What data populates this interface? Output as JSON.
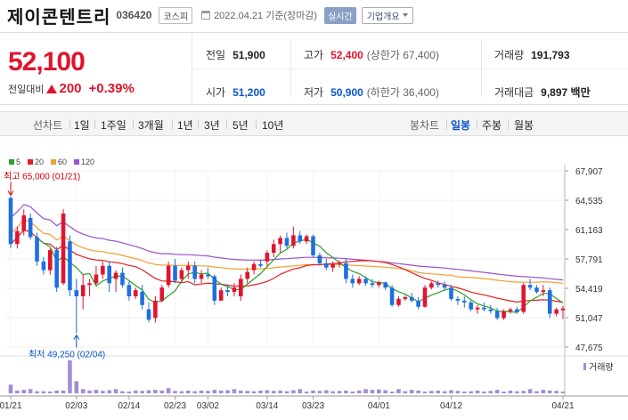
{
  "header": {
    "name": "제이콘텐트리",
    "code": "036420",
    "market": "코스피",
    "date": "2022.04.21 기준(장마감)",
    "live": "실시간",
    "company_btn": "기업개요"
  },
  "price": {
    "current": "52,100",
    "change_label": "전일대비",
    "change": "200",
    "change_pct": "+0.39%"
  },
  "stats": {
    "prev_label": "전일",
    "prev": "51,900",
    "high_label": "고가",
    "high": "52,400",
    "upper_limit": "(상한가 67,400)",
    "volume_label": "거래량",
    "volume": "191,793",
    "open_label": "시가",
    "open": "51,200",
    "low_label": "저가",
    "low": "50,900",
    "lower_limit": "(하한가 36,400)",
    "amount_label": "거래대금",
    "amount": "9,897 백만"
  },
  "tabs": {
    "line_label": "선차트",
    "line_tabs": [
      "1일",
      "1주일",
      "3개월",
      "1년",
      "3년",
      "5년",
      "10년"
    ],
    "candle_label": "봉차트",
    "candle_tabs": [
      "일봉",
      "주봉",
      "월봉"
    ],
    "candle_active": "일봉"
  },
  "colors": {
    "up": "#e0142f",
    "down": "#1f6fe0",
    "ma5": "#2ca02c",
    "ma20": "#e02020",
    "ma60": "#f0a030",
    "ma120": "#9a50d0"
  },
  "chart_data": {
    "type": "candlestick",
    "legend": [
      {
        "name": "5",
        "color": "#2ca02c"
      },
      {
        "name": "20",
        "color": "#e02020"
      },
      {
        "name": "60",
        "color": "#f0a030"
      },
      {
        "name": "120",
        "color": "#9a50d0"
      }
    ],
    "y_ticks": [
      "67,907",
      "64,535",
      "61,163",
      "57,791",
      "54,419",
      "51,047",
      "47,675"
    ],
    "ylim": [
      47675,
      67907
    ],
    "x_ticks": [
      "01/21",
      "02/03",
      "02/14",
      "02/23",
      "03/02",
      "03/14",
      "03/23",
      "04/01",
      "04/12",
      "04/21"
    ],
    "high_annotation": "최고 65,000 (01/21)",
    "low_annotation": "최저 49,250 (02/04)",
    "volume_label": "거래량",
    "candles": [
      [
        64800,
        65000,
        59000,
        59500
      ],
      [
        59500,
        61500,
        59000,
        61000
      ],
      [
        61000,
        63500,
        60500,
        62800
      ],
      [
        62500,
        63000,
        60000,
        60300
      ],
      [
        60300,
        60800,
        57000,
        57500
      ],
      [
        57500,
        58000,
        56000,
        56500
      ],
      [
        56500,
        59000,
        56000,
        58800
      ],
      [
        58800,
        59200,
        54000,
        54500
      ],
      [
        55000,
        63500,
        54800,
        63000
      ],
      [
        59800,
        60500,
        53500,
        54200
      ],
      [
        54200,
        55500,
        49250,
        53500
      ],
      [
        53500,
        56000,
        52000,
        54800
      ],
      [
        54800,
        55500,
        53500,
        55000
      ],
      [
        55000,
        57000,
        54800,
        56000
      ],
      [
        56000,
        57500,
        55500,
        57000
      ],
      [
        57000,
        57500,
        54000,
        55000
      ],
      [
        55500,
        56500,
        54000,
        56200
      ],
      [
        56200,
        56800,
        54500,
        54800
      ],
      [
        54800,
        55200,
        53000,
        53500
      ],
      [
        53500,
        54500,
        53200,
        54200
      ],
      [
        54000,
        54800,
        52000,
        52500
      ],
      [
        52000,
        52800,
        50500,
        50800
      ],
      [
        51000,
        53500,
        50500,
        53000
      ],
      [
        53000,
        54800,
        52800,
        54500
      ],
      [
        54800,
        57500,
        54500,
        57000
      ],
      [
        57000,
        57800,
        55000,
        55300
      ],
      [
        55500,
        56800,
        55000,
        56500
      ],
      [
        56500,
        57500,
        55500,
        57000
      ],
      [
        57000,
        57500,
        55000,
        55500
      ],
      [
        55500,
        56500,
        55000,
        56000
      ],
      [
        56000,
        56800,
        55500,
        55800
      ],
      [
        55800,
        56000,
        52500,
        53000
      ],
      [
        53000,
        54500,
        53000,
        54200
      ],
      [
        54200,
        54800,
        53500,
        54000
      ],
      [
        54000,
        55000,
        53500,
        54500
      ],
      [
        53500,
        56000,
        53000,
        55500
      ],
      [
        55500,
        56800,
        55000,
        56300
      ],
      [
        56500,
        57500,
        56000,
        57200
      ],
      [
        57200,
        57600,
        56800,
        57000
      ],
      [
        57500,
        58800,
        57000,
        58500
      ],
      [
        58500,
        60000,
        58000,
        59500
      ],
      [
        59500,
        60500,
        58500,
        60200
      ],
      [
        60200,
        60800,
        59000,
        59300
      ],
      [
        59300,
        61500,
        59000,
        60500
      ],
      [
        60500,
        61000,
        59500,
        59800
      ],
      [
        59800,
        60600,
        59500,
        60400
      ],
      [
        60400,
        60600,
        58000,
        58200
      ],
      [
        58200,
        58500,
        57000,
        57300
      ],
      [
        57300,
        57800,
        56500,
        56800
      ],
      [
        56800,
        57500,
        56300,
        57200
      ],
      [
        57200,
        57600,
        56800,
        57300
      ],
      [
        57300,
        57900,
        55000,
        55500
      ],
      [
        55500,
        56000,
        54500,
        55000
      ],
      [
        55000,
        55800,
        54800,
        55500
      ],
      [
        55500,
        55800,
        54700,
        55000
      ],
      [
        55000,
        55500,
        54500,
        54800
      ],
      [
        54800,
        55300,
        54500,
        55100
      ],
      [
        55100,
        55200,
        54200,
        54500
      ],
      [
        54500,
        54800,
        52300,
        52500
      ],
      [
        52500,
        53500,
        52300,
        53200
      ],
      [
        53200,
        53600,
        53000,
        53400
      ],
      [
        53400,
        53900,
        52800,
        53000
      ],
      [
        53000,
        53400,
        52000,
        52300
      ],
      [
        52300,
        54800,
        52200,
        54500
      ],
      [
        54500,
        55200,
        54300,
        55000
      ],
      [
        55000,
        55300,
        54500,
        54800
      ],
      [
        54800,
        55200,
        54200,
        54500
      ],
      [
        54500,
        54800,
        53000,
        53200
      ],
      [
        53200,
        53500,
        52500,
        53000
      ],
      [
        53000,
        53500,
        52200,
        52800
      ],
      [
        52800,
        53000,
        51800,
        52000
      ],
      [
        52000,
        52500,
        51500,
        52200
      ],
      [
        52200,
        52800,
        51800,
        52000
      ],
      [
        52000,
        52500,
        51500,
        51800
      ],
      [
        51800,
        52200,
        50800,
        51000
      ],
      [
        51000,
        52000,
        50800,
        51800
      ],
      [
        51800,
        52200,
        51500,
        52000
      ],
      [
        52000,
        52300,
        51500,
        51700
      ],
      [
        51700,
        55000,
        51500,
        54800
      ],
      [
        54800,
        55500,
        54200,
        54500
      ],
      [
        54500,
        54800,
        53800,
        54000
      ],
      [
        54000,
        54800,
        53500,
        54200
      ],
      [
        54200,
        54500,
        51000,
        51500
      ],
      [
        51500,
        52200,
        51200,
        52000
      ],
      [
        51900,
        52400,
        50900,
        52100
      ]
    ],
    "volumes": [
      25,
      8,
      10,
      12,
      6,
      6,
      5,
      8,
      8,
      95,
      35,
      12,
      8,
      10,
      7,
      9,
      12,
      6,
      5,
      8,
      7,
      9,
      10,
      8,
      15,
      7,
      6,
      8,
      6,
      8,
      7,
      10,
      8,
      9,
      12,
      8,
      7,
      6,
      8,
      9,
      7,
      8,
      6,
      9,
      12,
      5,
      8,
      7,
      9,
      6,
      7,
      8,
      5,
      8,
      12,
      10,
      11,
      9,
      5,
      12,
      6,
      10,
      8,
      5,
      7,
      8,
      6,
      9,
      7,
      5,
      6,
      8,
      5,
      7,
      10,
      5,
      8,
      6,
      7,
      12,
      6,
      10,
      8,
      7,
      5
    ]
  }
}
